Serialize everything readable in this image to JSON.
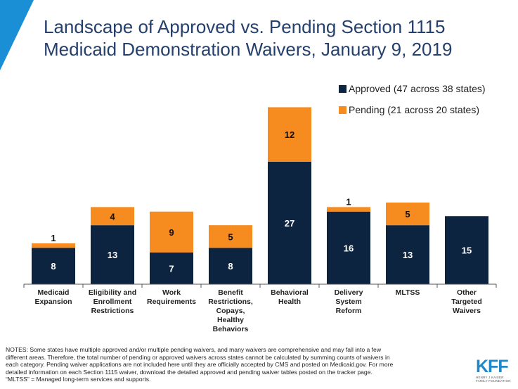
{
  "header": {
    "title_line1": "Landscape of Approved vs. Pending Section 1115",
    "title_line2": "Medicaid Demonstration Waivers, January 9, 2019"
  },
  "colors": {
    "approved": "#0d2440",
    "pending": "#f68b1f",
    "accent": "#1a8fd6",
    "title": "#25406d"
  },
  "chart_data": {
    "type": "bar",
    "stacked": true,
    "categories": [
      [
        "Medicaid",
        "Expansion"
      ],
      [
        "Eligibility and",
        "Enrollment",
        "Restrictions"
      ],
      [
        "Work",
        "Requirements"
      ],
      [
        "Benefit",
        "Restrictions,",
        "Copays,",
        "Healthy",
        "Behaviors"
      ],
      [
        "Behavioral",
        "Health"
      ],
      [
        "Delivery",
        "System",
        "Reform"
      ],
      [
        "MLTSS"
      ],
      [
        "Other",
        "Targeted",
        "Waivers"
      ]
    ],
    "series": [
      {
        "name": "Approved (47 across 38 states)",
        "values": [
          8,
          13,
          7,
          8,
          27,
          16,
          13,
          15
        ]
      },
      {
        "name": "Pending (21 across 20 states)",
        "values": [
          1,
          4,
          9,
          5,
          12,
          1,
          5,
          0
        ]
      }
    ],
    "legend_position": "top-right",
    "grid": false
  },
  "notes": {
    "line1": "NOTES: Some states have multiple approved and/or multiple pending waivers, and many waivers are comprehensive and may fall into a few",
    "line2": "different areas. Therefore, the total number of pending or approved waivers across states cannot be calculated by summing counts of waivers in",
    "line3": "each category. Pending waiver applications are not included here until they are officially accepted by CMS and posted on Medicaid.gov. For more",
    "line4": "detailed information on each Section 1115 waiver, download the detailed approved and pending waiver tables posted on the tracker page.",
    "line5": "“MLTSS” = Managed long-term services and supports."
  },
  "logo": {
    "mark": "KFF",
    "sub1": "HENRY J KAISER",
    "sub2": "FAMILY FOUNDATION"
  }
}
